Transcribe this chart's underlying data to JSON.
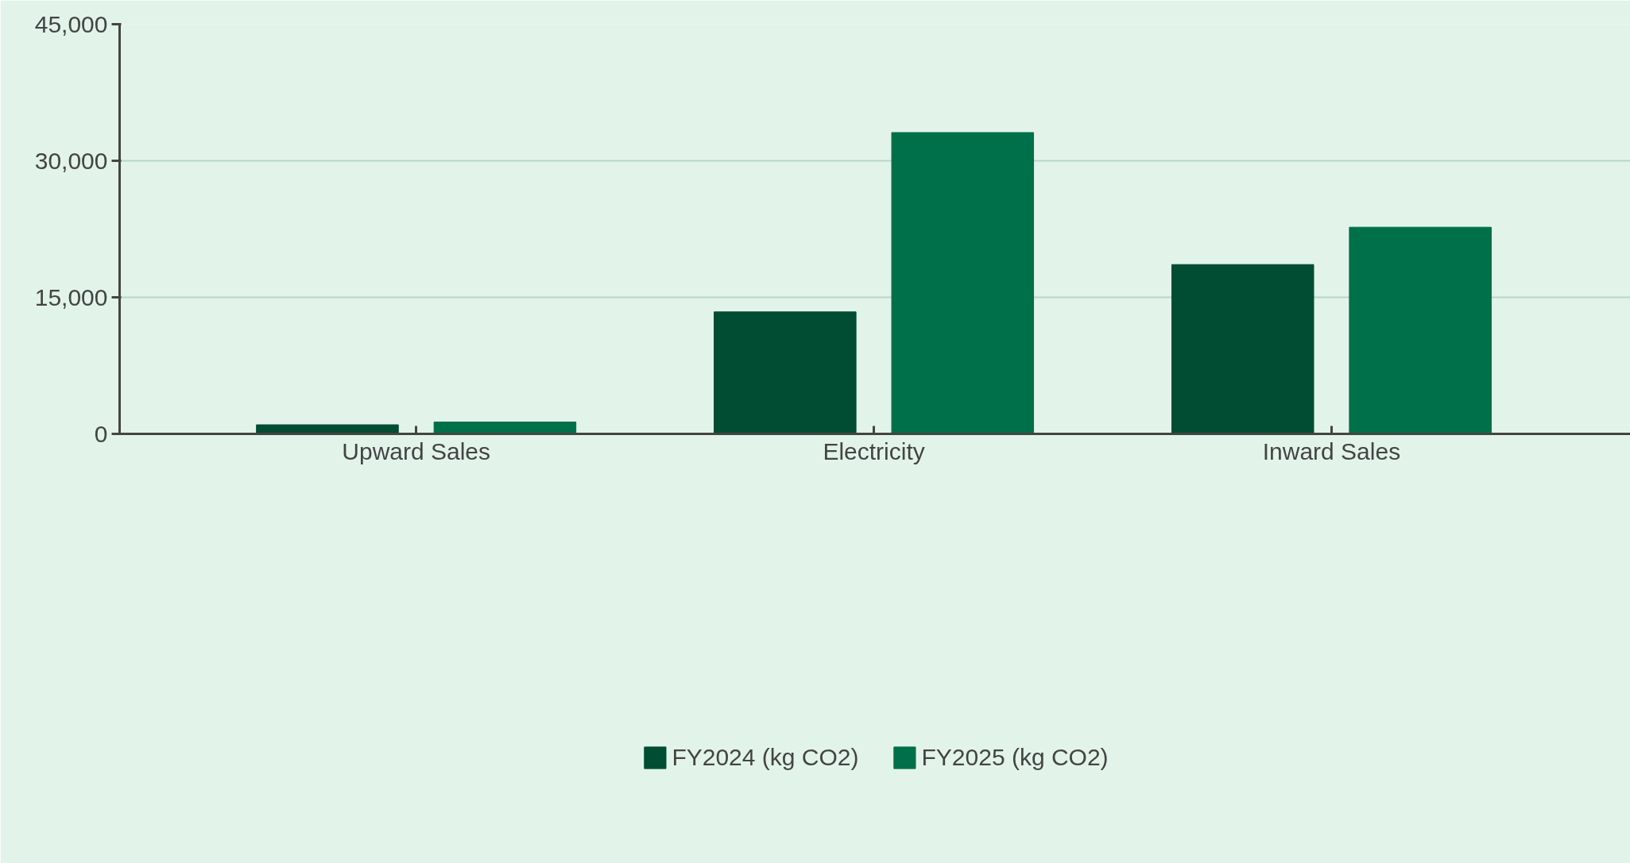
{
  "chart_data": {
    "type": "bar",
    "categories": [
      "Upward Sales",
      "Electricity",
      "Inward Sales"
    ],
    "series": [
      {
        "name": "FY2024 (kg CO2)",
        "color": "#004d33",
        "values": [
          1000,
          13400,
          18600
        ]
      },
      {
        "name": "FY2025 (kg CO2)",
        "color": "#00704a",
        "values": [
          1300,
          33100,
          22700
        ]
      }
    ],
    "ylim": [
      0,
      45000
    ],
    "yticks": [
      {
        "value": 0,
        "label": "0"
      },
      {
        "value": 15000,
        "label": "15,000"
      },
      {
        "value": 30000,
        "label": "30,000"
      },
      {
        "value": 45000,
        "label": "45,000"
      }
    ],
    "grid": "y",
    "legend": "bottom"
  }
}
